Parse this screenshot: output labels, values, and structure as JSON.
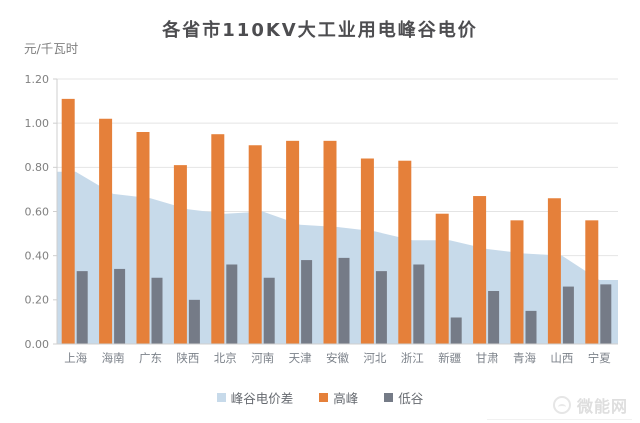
{
  "title": "各省市110KV大工业用电峰谷电价",
  "y_axis_unit": "元/千瓦时",
  "watermark": "微能网",
  "colors": {
    "peak": "#e5803a",
    "valley": "#757b87",
    "diff_area": "#c7daea",
    "grid": "#e4e4e4",
    "axis": "#cfcfcf",
    "axis_text": "#808080",
    "category_text": "#7c828a",
    "title_text": "#4d4d50"
  },
  "legend": [
    {
      "label": "峰谷电价差",
      "color_key": "diff_area"
    },
    {
      "label": "高峰",
      "color_key": "peak"
    },
    {
      "label": "低谷",
      "color_key": "valley"
    }
  ],
  "chart_data": {
    "type": "combo-area-bar",
    "title": "各省市110KV大工业用电峰谷电价",
    "ylabel": "元/千瓦时",
    "xlabel": "",
    "ylim": [
      0,
      1.2
    ],
    "yticks": [
      "0.00",
      "0.20",
      "0.40",
      "0.60",
      "0.80",
      "1.00",
      "1.20"
    ],
    "grid": true,
    "legend_position": "bottom",
    "categories": [
      "上海",
      "海南",
      "广东",
      "陕西",
      "北京",
      "河南",
      "天津",
      "安徽",
      "河北",
      "浙江",
      "新疆",
      "甘肃",
      "青海",
      "山西",
      "宁夏"
    ],
    "series": [
      {
        "name": "峰谷电价差",
        "type": "area",
        "values": [
          0.78,
          0.68,
          0.66,
          0.61,
          0.59,
          0.6,
          0.54,
          0.53,
          0.51,
          0.47,
          0.47,
          0.43,
          0.41,
          0.4,
          0.29
        ]
      },
      {
        "name": "高峰",
        "type": "bar",
        "values": [
          1.11,
          1.02,
          0.96,
          0.81,
          0.95,
          0.9,
          0.92,
          0.92,
          0.84,
          0.83,
          0.59,
          0.67,
          0.56,
          0.66,
          0.56
        ]
      },
      {
        "name": "低谷",
        "type": "bar",
        "values": [
          0.33,
          0.34,
          0.3,
          0.2,
          0.36,
          0.3,
          0.38,
          0.39,
          0.33,
          0.36,
          0.12,
          0.24,
          0.15,
          0.26,
          0.27
        ]
      }
    ]
  }
}
